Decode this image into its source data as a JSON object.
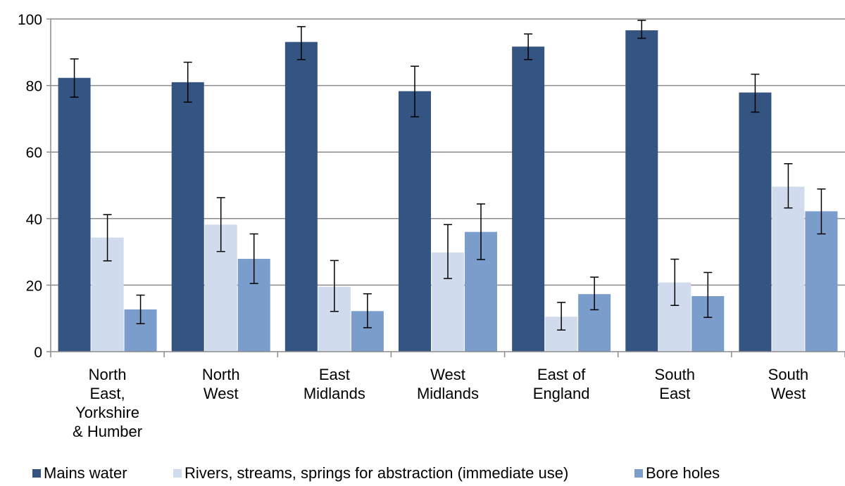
{
  "colors": {
    "mains": "#345481",
    "rivers": "#d0dced",
    "bore": "#7b9dcb",
    "axis": "#8c8c8c",
    "grid": "#8c8c8c",
    "error": "#000000"
  },
  "chart_data": {
    "type": "bar",
    "categories": [
      [
        "North",
        "East,",
        "Yorkshire",
        "& Humber"
      ],
      [
        "North",
        "West"
      ],
      [
        "East",
        "Midlands"
      ],
      [
        "West",
        "Midlands"
      ],
      [
        "East of",
        "England"
      ],
      [
        "South",
        "East"
      ],
      [
        "South",
        "West"
      ]
    ],
    "series": [
      {
        "name": "Mains water",
        "color_key": "mains",
        "values": [
          82.3,
          81.0,
          93.1,
          78.3,
          91.7,
          96.6,
          77.9
        ],
        "err_low": [
          76.5,
          75.0,
          87.8,
          70.6,
          87.8,
          94.2,
          72.0
        ],
        "err_high": [
          88.0,
          87.0,
          97.7,
          85.8,
          95.5,
          99.6,
          83.4
        ]
      },
      {
        "name": "Rivers, streams, springs for abstraction (immediate use)",
        "color_key": "rivers",
        "values": [
          34.3,
          38.2,
          19.5,
          29.8,
          10.5,
          20.8,
          49.6
        ],
        "err_low": [
          27.3,
          30.1,
          12.1,
          22.0,
          6.5,
          13.9,
          43.2
        ],
        "err_high": [
          41.2,
          46.3,
          27.4,
          38.2,
          14.8,
          27.8,
          56.5
        ]
      },
      {
        "name": "Bore holes",
        "color_key": "bore",
        "values": [
          12.7,
          27.9,
          12.2,
          36.0,
          17.3,
          16.7,
          42.2
        ],
        "err_low": [
          8.4,
          20.5,
          7.2,
          27.7,
          12.6,
          10.3,
          35.4
        ],
        "err_high": [
          17.0,
          35.4,
          17.4,
          44.4,
          22.4,
          23.8,
          48.9
        ]
      }
    ],
    "yticks": [
      0,
      20,
      40,
      60,
      80,
      100
    ],
    "ylim": [
      0,
      100
    ],
    "grid": true,
    "legend": "bottom",
    "title": "",
    "xlabel": "",
    "ylabel": ""
  }
}
